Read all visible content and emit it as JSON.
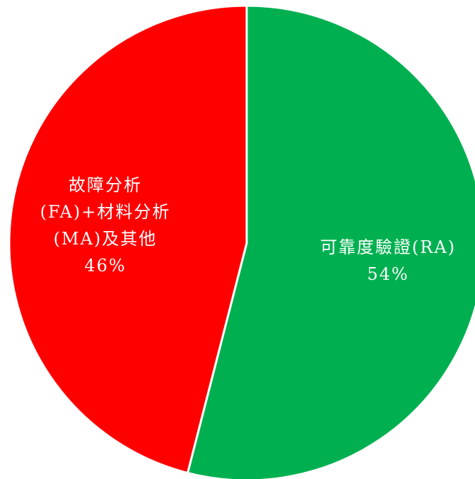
{
  "chart_data": {
    "type": "pie",
    "categories": [
      "可靠度驗證(RA)",
      "故障分析(FA)+材料分析(MA)及其他"
    ],
    "values": [
      54,
      46
    ],
    "value_labels": [
      "54%",
      "46%"
    ],
    "colors": [
      "#00b050",
      "#ff0000"
    ]
  }
}
